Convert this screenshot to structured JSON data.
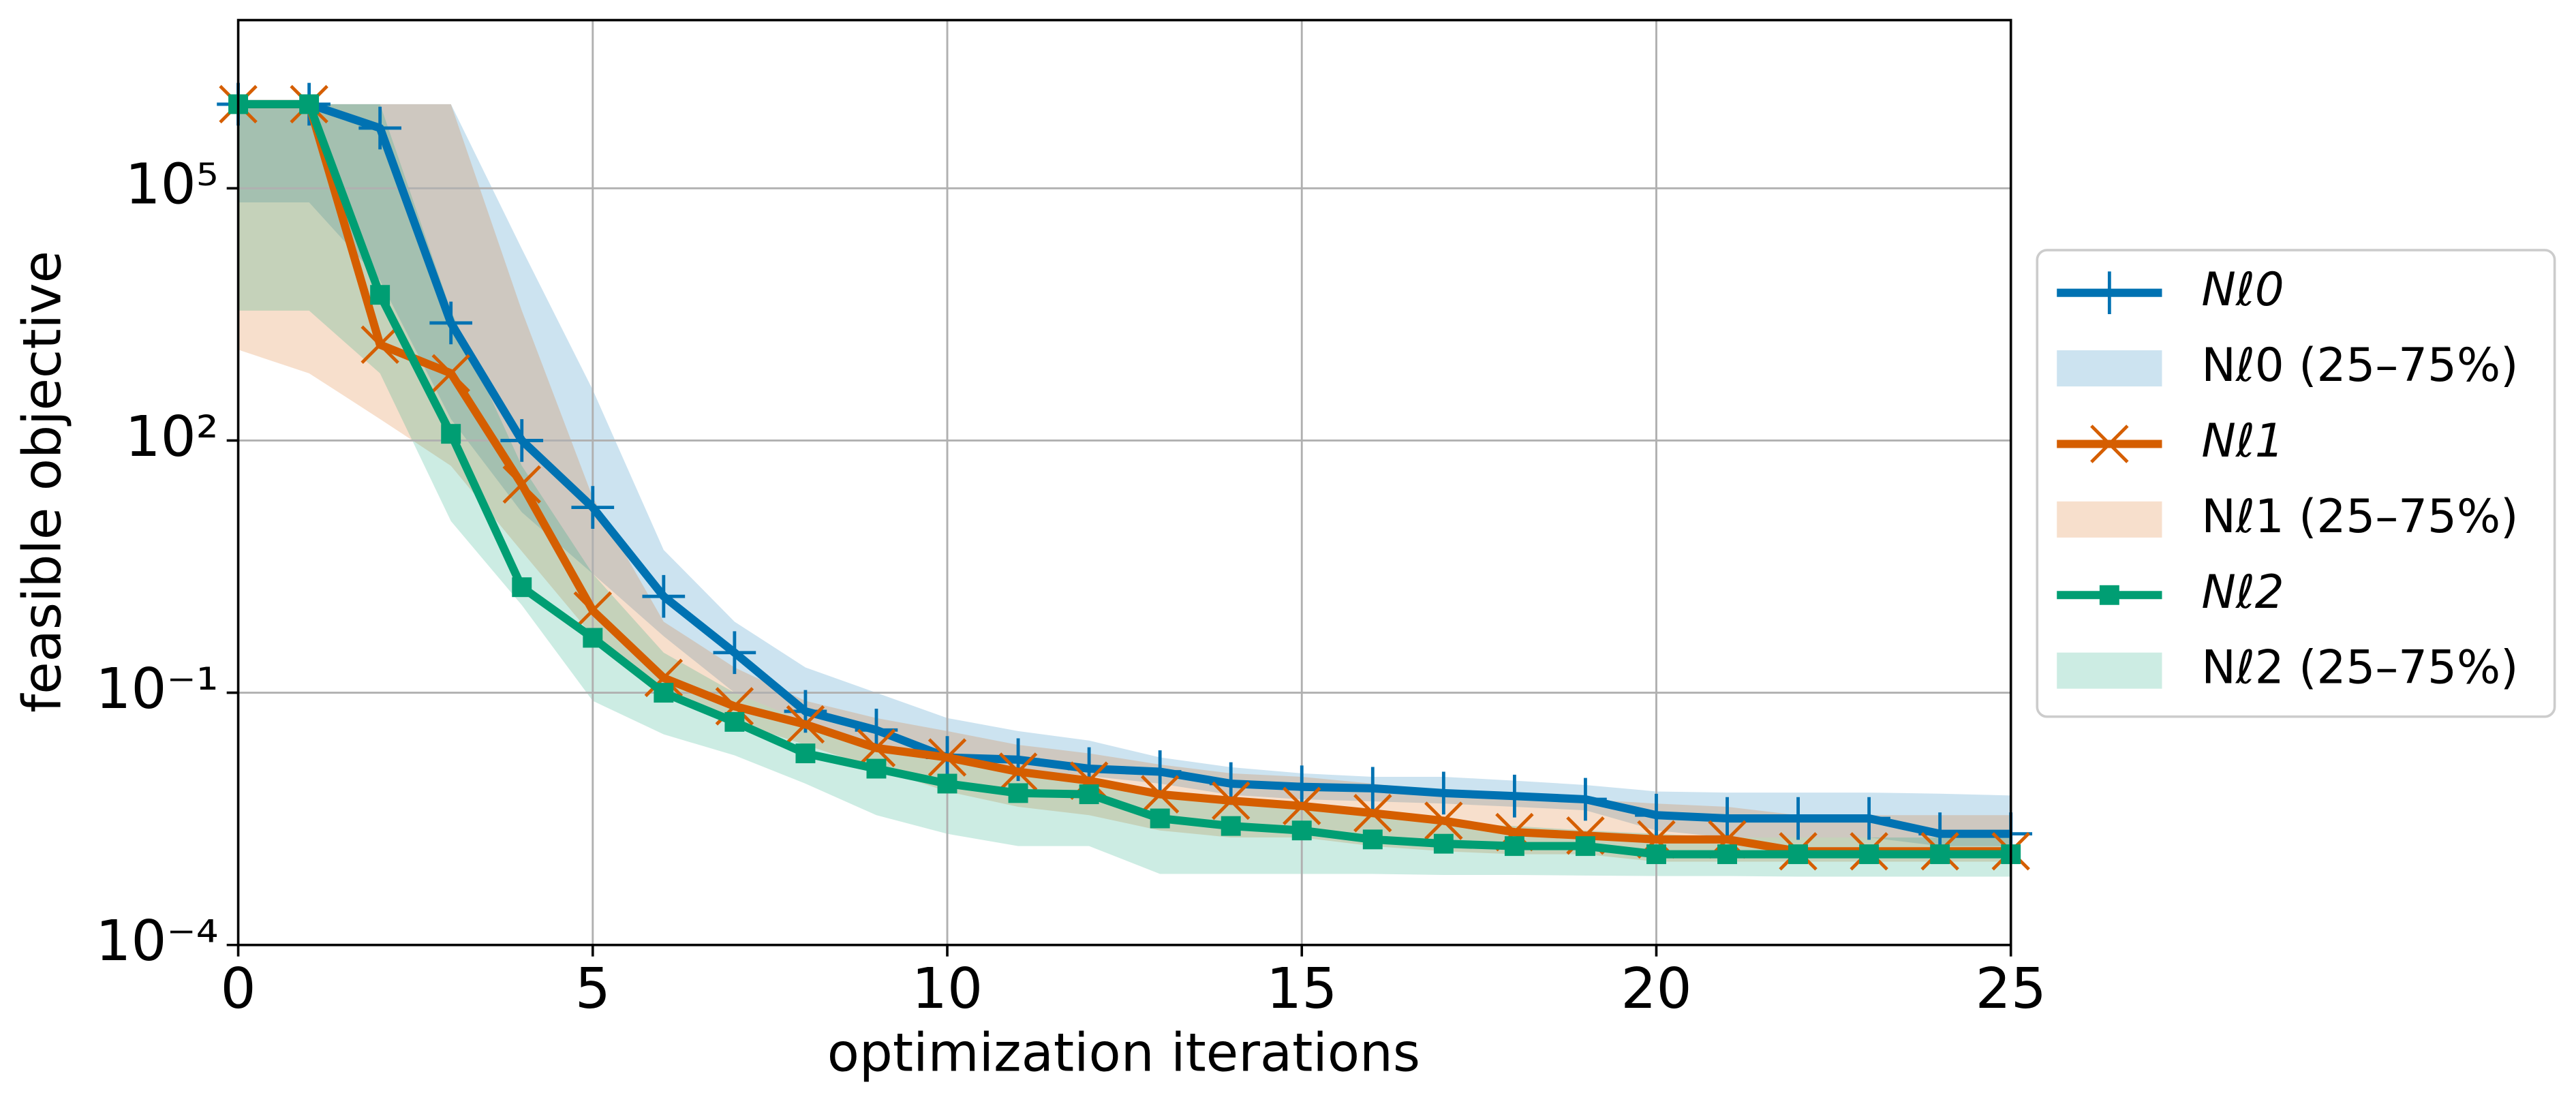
{
  "chart_data": {
    "type": "line",
    "xlabel": "optimization iterations",
    "ylabel": "feasible objective",
    "log_y": true,
    "grid": true,
    "legend": "right",
    "x": [
      0,
      1,
      2,
      3,
      4,
      5,
      6,
      7,
      8,
      9,
      10,
      11,
      12,
      13,
      14,
      15,
      16,
      17,
      18,
      19,
      20,
      21,
      22,
      23,
      24,
      25
    ],
    "xlim": [
      0,
      25
    ],
    "xticks": [
      0,
      5,
      10,
      15,
      20,
      25
    ],
    "ylim": [
      0.0001,
      10000000
    ],
    "yticks": [
      {
        "value": 100000,
        "label": "10⁵"
      },
      {
        "value": 100,
        "label": "10²"
      },
      {
        "value": 0.1,
        "label": "10⁻¹"
      },
      {
        "value": 0.0001,
        "label": "10⁻⁴"
      }
    ],
    "series": [
      {
        "name": "Nℓ0",
        "color": "#0072b2",
        "marker": "plus",
        "values": [
          1000000,
          1000000,
          520000,
          2500,
          100,
          16,
          1.4,
          0.3,
          0.06,
          0.036,
          0.017,
          0.016,
          0.0125,
          0.0115,
          0.0083,
          0.0076,
          0.0073,
          0.0064,
          0.0059,
          0.0054,
          0.0035,
          0.0032,
          0.0032,
          0.0032,
          0.0021,
          0.0021
        ]
      },
      {
        "name": "Nℓ1",
        "color": "#d55e00",
        "marker": "x",
        "values": [
          1000000,
          1000000,
          1380,
          630,
          30,
          0.95,
          0.15,
          0.069,
          0.042,
          0.022,
          0.017,
          0.0115,
          0.009,
          0.0062,
          0.0052,
          0.0045,
          0.0037,
          0.003,
          0.0022,
          0.002,
          0.0018,
          0.0018,
          0.0013,
          0.0013,
          0.0013,
          0.0013
        ]
      },
      {
        "name": "Nℓ2",
        "color": "#009e73",
        "marker": "square",
        "values": [
          1000000,
          1000000,
          5400,
          120,
          1.8,
          0.45,
          0.1,
          0.045,
          0.019,
          0.0125,
          0.0083,
          0.0064,
          0.0062,
          0.0032,
          0.0026,
          0.0023,
          0.0018,
          0.0016,
          0.0015,
          0.0015,
          0.0012,
          0.0012,
          0.0012,
          0.0012,
          0.0012,
          0.0012
        ]
      }
    ],
    "bands": [
      {
        "name": "Nℓ0 (25–75%)",
        "color": "#0072b2",
        "upper": [
          1000000,
          1000000,
          1000000,
          1000000,
          19000,
          400,
          5,
          0.7,
          0.2,
          0.1,
          0.05,
          0.035,
          0.027,
          0.017,
          0.013,
          0.011,
          0.01,
          0.01,
          0.009,
          0.008,
          0.0067,
          0.0065,
          0.0065,
          0.0065,
          0.0063,
          0.006
        ],
        "lower": [
          68000,
          68000,
          8000,
          180,
          14,
          2.6,
          0.47,
          0.1,
          0.045,
          0.024,
          0.0155,
          0.0126,
          0.0102,
          0.0083,
          0.0061,
          0.0054,
          0.0051,
          0.0048,
          0.0044,
          0.004,
          0.0023,
          0.0019,
          0.0019,
          0.0019,
          0.0015,
          0.0015
        ]
      },
      {
        "name": "Nℓ1 (25–75%)",
        "color": "#d55e00",
        "upper": [
          1000000,
          1000000,
          1000000,
          1000000,
          3500,
          21,
          0.7,
          0.2,
          0.08,
          0.05,
          0.035,
          0.024,
          0.019,
          0.014,
          0.011,
          0.01,
          0.0083,
          0.0067,
          0.0061,
          0.0054,
          0.0048,
          0.0044,
          0.0035,
          0.0035,
          0.0035,
          0.0035
        ],
        "lower": [
          1200,
          630,
          180,
          50,
          4.8,
          0.47,
          0.1,
          0.045,
          0.024,
          0.0126,
          0.0067,
          0.0044,
          0.0035,
          0.0023,
          0.0019,
          0.0019,
          0.0015,
          0.0013,
          0.0012,
          0.0012,
          0.00098,
          0.00098,
          0.00098,
          0.00098,
          0.00098,
          0.00098
        ]
      },
      {
        "name": "Nℓ2 (25–75%)",
        "color": "#009e73",
        "upper": [
          1000000,
          1000000,
          1000000,
          3500,
          50,
          2.6,
          0.3,
          0.1,
          0.045,
          0.024,
          0.0155,
          0.011,
          0.0083,
          0.0061,
          0.0054,
          0.0044,
          0.0035,
          0.0028,
          0.0026,
          0.0023,
          0.0021,
          0.0019,
          0.0019,
          0.0019,
          0.0019,
          0.0019
        ],
        "lower": [
          3500,
          3500,
          630,
          11,
          1.1,
          0.08,
          0.032,
          0.018,
          0.0083,
          0.0035,
          0.0021,
          0.0015,
          0.0015,
          0.0007,
          0.0007,
          0.0007,
          0.0007,
          0.00068,
          0.00068,
          0.00067,
          0.00066,
          0.00066,
          0.00065,
          0.00065,
          0.00065,
          0.00065
        ]
      }
    ]
  }
}
